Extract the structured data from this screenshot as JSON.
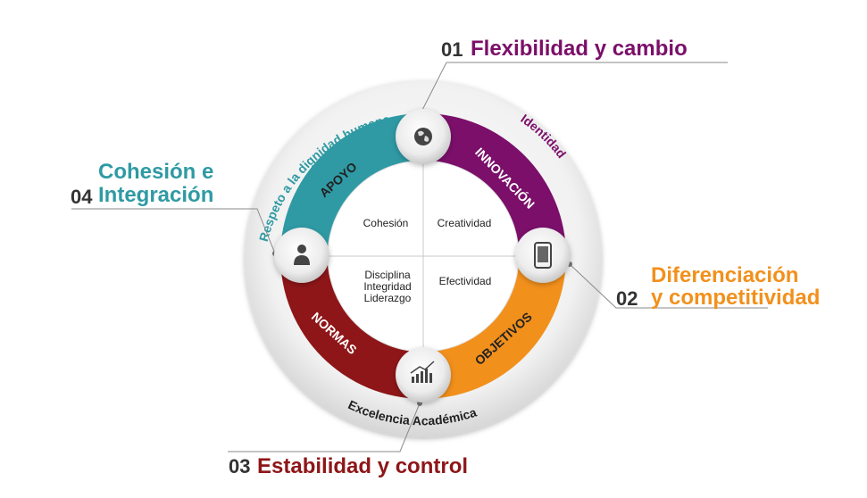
{
  "colors": {
    "innovacion": "#7b0f6a",
    "objetivos": "#f2901c",
    "normas": "#8e1618",
    "apoyo": "#2f9aa4",
    "ring_text": "#7b0f6a",
    "teal_text": "#2f9aa4",
    "dark_text": "#222222",
    "line": "#8a8a8a"
  },
  "quadrants": [
    {
      "id": "innovacion",
      "label": "INNOVACIÓN",
      "icon": "globe-icon"
    },
    {
      "id": "objetivos",
      "label": "OBJETIVOS",
      "icon": "smartphone-icon"
    },
    {
      "id": "normas",
      "label": "NORMAS",
      "icon": "bar-chart-icon"
    },
    {
      "id": "apoyo",
      "label": "APOYO",
      "icon": "person-icon"
    }
  ],
  "inner": {
    "top_left": "Cohesión",
    "top_right": "Creatividad",
    "bottom_left": [
      "Disciplina",
      "Integridad",
      "Liderazgo"
    ],
    "bottom_right": "Efectividad"
  },
  "outer_ring": {
    "left_arc": "Respeto a la dignidad humana",
    "right_arc": "Identidad",
    "bottom_arc": "Excelencia Académica"
  },
  "callouts": [
    {
      "id": "c01",
      "number": "01",
      "title_lines": [
        "Flexibilidad y cambio"
      ],
      "color": "#7b0f6a"
    },
    {
      "id": "c02",
      "number": "02",
      "title_lines": [
        "Diferenciación",
        "y competitividad"
      ],
      "color": "#f2901c"
    },
    {
      "id": "c03",
      "number": "03",
      "title_lines": [
        "Estabilidad y control"
      ],
      "color": "#8e1618"
    },
    {
      "id": "c04",
      "number": "04",
      "title_lines": [
        "Cohesión e",
        "Integración"
      ],
      "color": "#2f9aa4"
    }
  ]
}
